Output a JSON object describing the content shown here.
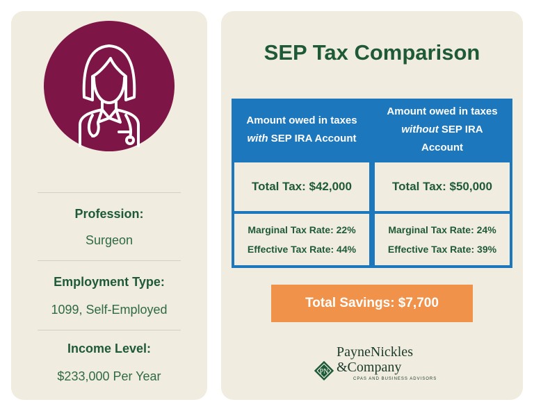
{
  "profile": {
    "icon": "doctor-avatar-icon",
    "profession_label": "Profession:",
    "profession_value": "Surgeon",
    "employment_label": "Employment Type:",
    "employment_value": "1099, Self-Employed",
    "income_label": "Income Level:",
    "income_value": "$233,000 Per Year"
  },
  "comparison": {
    "title": "SEP Tax Comparison",
    "columns": [
      {
        "header_pre": "Amount owed in taxes ",
        "header_em": "with",
        "header_post": " SEP IRA Account",
        "total_tax": "Total Tax: $42,000",
        "marginal_rate": "Marginal Tax Rate: 22%",
        "effective_rate": "Effective Tax Rate: 44%"
      },
      {
        "header_pre": "Amount owed in taxes ",
        "header_em": "without",
        "header_post": " SEP IRA Account",
        "total_tax": "Total Tax: $50,000",
        "marginal_rate": "Marginal Tax Rate: 24%",
        "effective_rate": "Effective Tax Rate: 39%"
      }
    ],
    "savings": "Total Savings: $7,700"
  },
  "logo": {
    "line1": "PayneNickles",
    "line2": "&Company",
    "tagline": "CPAS AND BUSINESS ADVISORS",
    "badge_text": "PN"
  },
  "colors": {
    "panel_bg": "#f1ece0",
    "avatar_bg": "#7d1546",
    "heading_green": "#1f5a36",
    "table_blue": "#1d77bd",
    "savings_orange": "#f0924a"
  }
}
